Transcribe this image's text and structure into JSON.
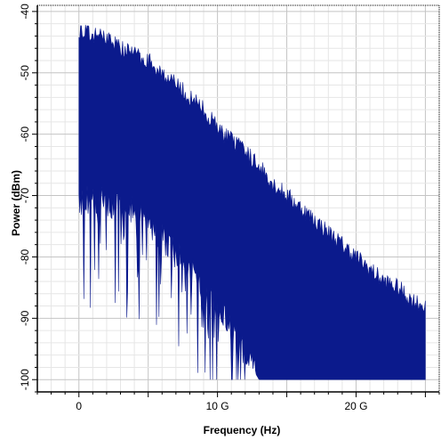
{
  "chart_data": {
    "type": "area",
    "title": "",
    "xlabel": "Frequency (Hz)",
    "ylabel": "Power (dBm)",
    "xlim": [
      -3000000000.0,
      26000000000.0
    ],
    "ylim": [
      -102,
      -39
    ],
    "x_ticks": [
      {
        "value": 0,
        "label": "0"
      },
      {
        "value": 10000000000.0,
        "label": "10 G"
      },
      {
        "value": 20000000000.0,
        "label": "20 G"
      }
    ],
    "y_ticks": [
      {
        "value": -40,
        "label": "-40"
      },
      {
        "value": -50,
        "label": "-50"
      },
      {
        "value": -60,
        "label": "-60"
      },
      {
        "value": -70,
        "label": "-70"
      },
      {
        "value": -80,
        "label": "-80"
      },
      {
        "value": -90,
        "label": "-90"
      },
      {
        "value": -100,
        "label": "-100"
      }
    ],
    "grid": true,
    "fill_color": "#0b1a8c",
    "series": [
      {
        "x": [
          0,
          1000000000.0,
          2000000000.0,
          3000000000.0,
          4000000000.0,
          5000000000.0,
          6000000000.0,
          7000000000.0,
          8000000000.0,
          9000000000.0,
          10000000000.0,
          11000000000.0,
          12000000000.0,
          13000000000.0,
          14000000000.0,
          15000000000.0,
          16000000000.0,
          17000000000.0,
          18000000000.0,
          19000000000.0,
          20000000000.0,
          21000000000.0,
          22000000000.0,
          23000000000.0,
          24000000000.0,
          25000000000.0
        ],
        "max": [
          -43,
          -44,
          -44,
          -46,
          -47,
          -48,
          -50,
          -52,
          -54,
          -56,
          -59,
          -61,
          -63,
          -65,
          -68,
          -70,
          -72,
          -74,
          -76,
          -78,
          -80,
          -82,
          -84,
          -85,
          -87,
          -88
        ],
        "min": [
          -72,
          -70,
          -71,
          -72,
          -72,
          -74,
          -77,
          -79,
          -82,
          -85,
          -88,
          -92,
          -96,
          -100,
          -100,
          -100,
          -100,
          -100,
          -100,
          -100,
          -100,
          -100,
          -100,
          -100,
          -100,
          -100
        ]
      }
    ]
  }
}
